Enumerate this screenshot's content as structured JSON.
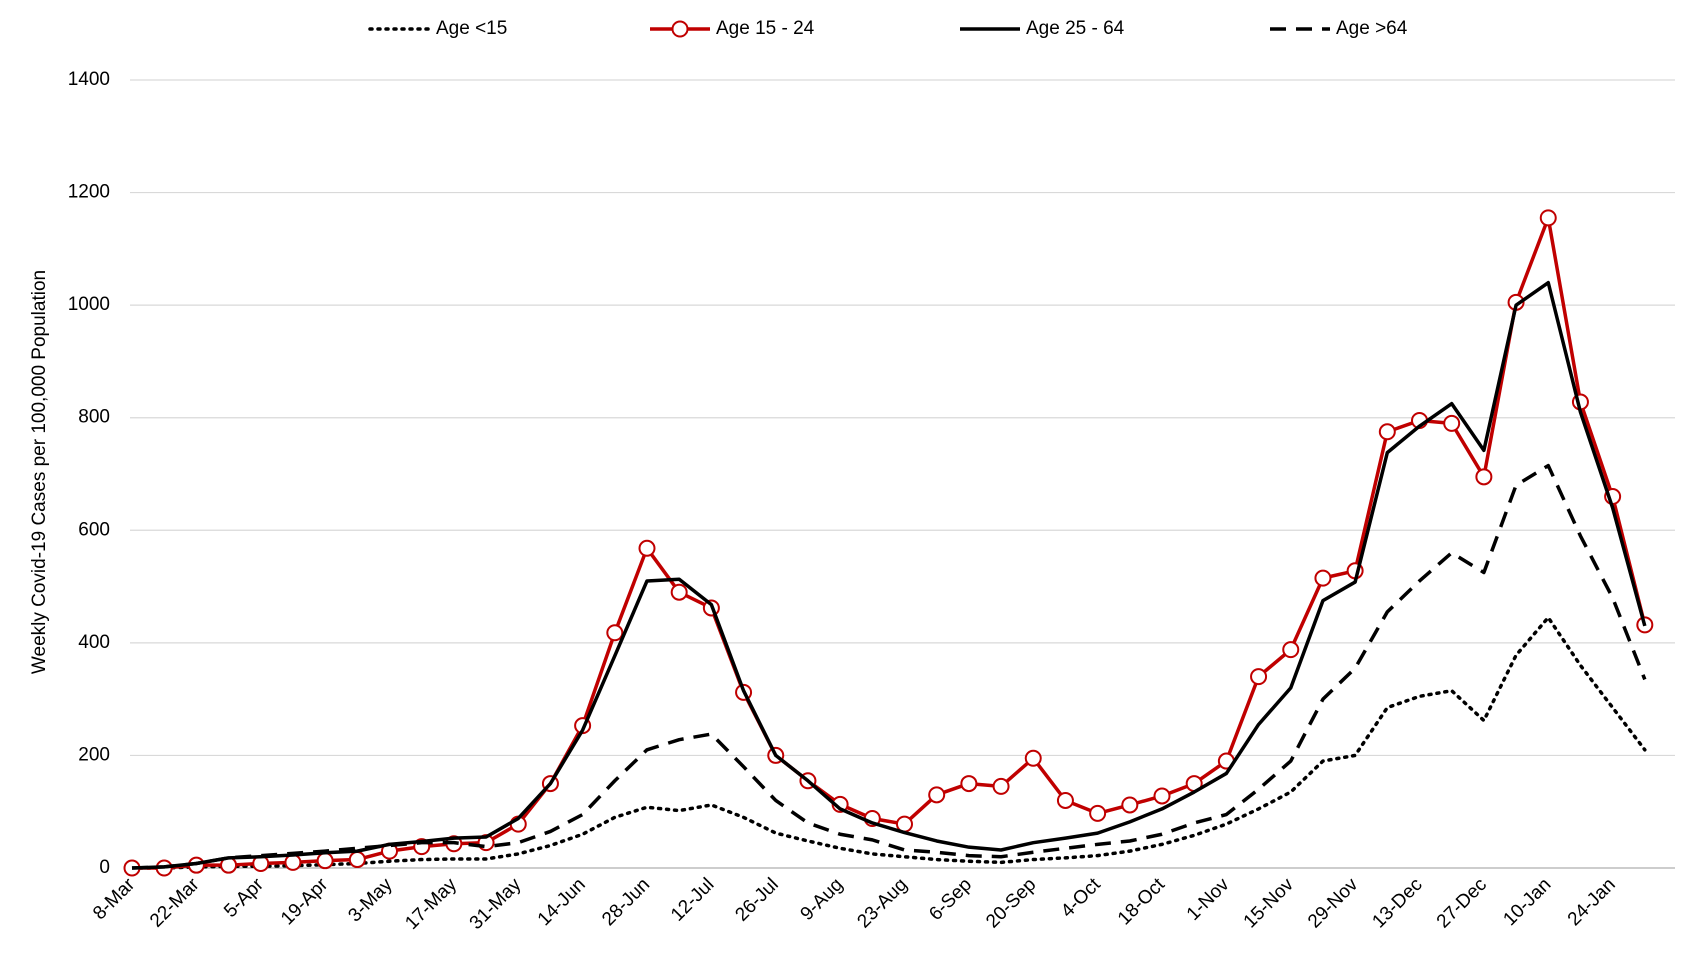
{
  "chart_data": {
    "type": "line",
    "y_label": "Weekly Covid-19 Cases per 100,000 Population",
    "categories": [
      "8-Mar",
      null,
      "22-Mar",
      null,
      "5-Apr",
      null,
      "19-Apr",
      null,
      "3-May",
      null,
      "17-May",
      null,
      "31-May",
      null,
      "14-Jun",
      null,
      "28-Jun",
      null,
      "12-Jul",
      null,
      "26-Jul",
      null,
      "9-Aug",
      null,
      "23-Aug",
      null,
      "6-Sep",
      null,
      "20-Sep",
      null,
      "4-Oct",
      null,
      "18-Oct",
      null,
      "1-Nov",
      null,
      "15-Nov",
      null,
      "29-Nov",
      null,
      "13-Dec",
      null,
      "27-Dec",
      null,
      "10-Jan",
      null,
      "24-Jan",
      null
    ],
    "series": [
      {
        "name": "Age <15",
        "color": "#000000",
        "style": "dotted",
        "marker": "none",
        "values": [
          0,
          0,
          2,
          3,
          3,
          4,
          6,
          8,
          12,
          15,
          16,
          16,
          25,
          40,
          60,
          90,
          108,
          102,
          112,
          90,
          62,
          48,
          35,
          25,
          20,
          15,
          12,
          10,
          15,
          18,
          22,
          30,
          42,
          58,
          78,
          105,
          135,
          190,
          200,
          285,
          305,
          315,
          262,
          378,
          445,
          360,
          285,
          210
        ]
      },
      {
        "name": "Age 15 - 24",
        "color": "#c00000",
        "style": "solid",
        "marker": "circle",
        "values": [
          0,
          0,
          5,
          5,
          8,
          10,
          13,
          15,
          30,
          38,
          43,
          45,
          78,
          150,
          253,
          418,
          568,
          490,
          462,
          312,
          200,
          155,
          113,
          88,
          78,
          130,
          150,
          145,
          195,
          120,
          97,
          112,
          128,
          150,
          190,
          340,
          388,
          515,
          528,
          775,
          795,
          790,
          695,
          1005,
          1155,
          828,
          660,
          432
        ]
      },
      {
        "name": "Age 25 - 64",
        "color": "#000000",
        "style": "solid",
        "marker": "none",
        "values": [
          0,
          2,
          8,
          18,
          20,
          23,
          27,
          30,
          42,
          47,
          53,
          55,
          88,
          150,
          245,
          377,
          510,
          513,
          468,
          315,
          200,
          155,
          105,
          80,
          63,
          48,
          37,
          32,
          45,
          53,
          62,
          82,
          105,
          135,
          168,
          255,
          320,
          475,
          508,
          738,
          785,
          825,
          742,
          1000,
          1040,
          810,
          640,
          430
        ]
      },
      {
        "name": "Age >64",
        "color": "#000000",
        "style": "dashed",
        "marker": "none",
        "values": [
          0,
          2,
          8,
          18,
          22,
          26,
          30,
          35,
          40,
          45,
          45,
          38,
          45,
          65,
          95,
          155,
          210,
          228,
          238,
          180,
          120,
          80,
          60,
          50,
          32,
          28,
          22,
          20,
          28,
          35,
          42,
          48,
          60,
          80,
          95,
          140,
          190,
          300,
          355,
          455,
          510,
          560,
          525,
          680,
          715,
          590,
          480,
          335
        ]
      }
    ],
    "ylim": [
      0,
      1400
    ],
    "yticks": [
      0,
      200,
      400,
      600,
      800,
      1000,
      1200,
      1400
    ],
    "grid": true,
    "legend": "top"
  }
}
